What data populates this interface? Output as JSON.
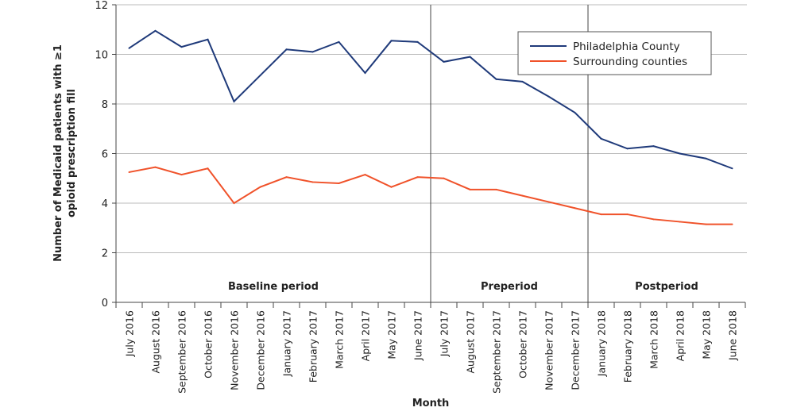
{
  "chart_data": {
    "type": "line",
    "title": "",
    "xlabel": "Month",
    "ylabel": "Number of Medicaid patients with ≥1 opioid prescription fill",
    "ylabel_lines": [
      "Number of Medicaid patients with ≥1",
      "opioid prescription fill"
    ],
    "ylim": [
      0,
      12
    ],
    "yticks": [
      0,
      2,
      4,
      6,
      8,
      10,
      12
    ],
    "grid": "horizontal",
    "legend_position": "top-right",
    "categories": [
      "July 2016",
      "August 2016",
      "September 2016",
      "October 2016",
      "November 2016",
      "December 2016",
      "January 2017",
      "February 2017",
      "March 2017",
      "April 2017",
      "May 2017",
      "June 2017",
      "July 2017",
      "August 2017",
      "September 2017",
      "October 2017",
      "November 2017",
      "December 2017",
      "January 2018",
      "February 2018",
      "March 2018",
      "April 2018",
      "May 2018",
      "June 2018"
    ],
    "series": [
      {
        "name": "Philadelphia County",
        "color": "#1f3a7a",
        "values": [
          10.25,
          10.95,
          10.3,
          10.6,
          8.1,
          9.15,
          10.2,
          10.1,
          10.5,
          9.25,
          10.55,
          10.5,
          9.7,
          9.9,
          9.0,
          8.9,
          8.3,
          7.65,
          6.6,
          6.2,
          6.3,
          6.0,
          5.8,
          5.4
        ]
      },
      {
        "name": "Surrounding counties",
        "color": "#f0522a",
        "values": [
          5.25,
          5.45,
          5.15,
          5.4,
          4.0,
          4.65,
          5.05,
          4.85,
          4.8,
          5.15,
          4.65,
          5.05,
          5.0,
          4.55,
          4.55,
          4.3,
          4.05,
          3.8,
          3.55,
          3.55,
          3.35,
          3.25,
          3.15,
          3.15
        ]
      }
    ],
    "periods": [
      {
        "label": "Baseline period",
        "start": 0,
        "end": 12
      },
      {
        "label": "Preperiod",
        "start": 12,
        "end": 18
      },
      {
        "label": "Postperiod",
        "start": 18,
        "end": 24
      }
    ]
  }
}
